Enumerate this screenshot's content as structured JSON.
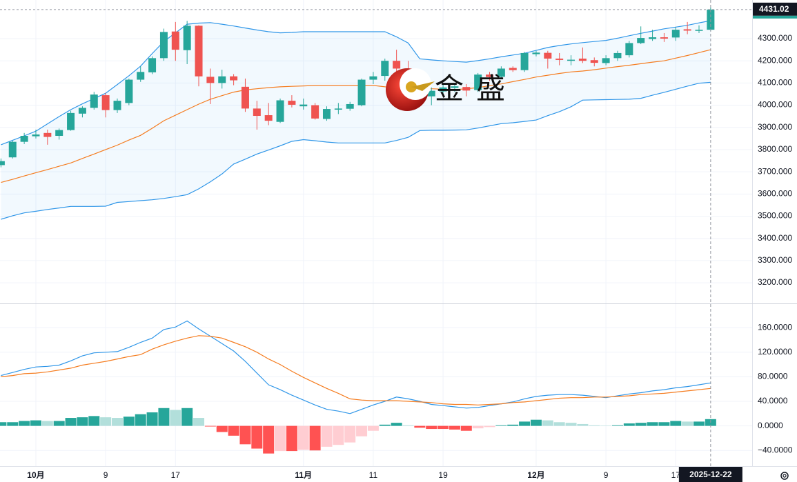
{
  "chart_data": [
    {
      "type": "candlestick",
      "watermark": "金盛",
      "categories": [
        null,
        null,
        null,
        "10月",
        null,
        null,
        null,
        null,
        null,
        "9",
        null,
        null,
        null,
        null,
        null,
        "17",
        null,
        null,
        null,
        null,
        null,
        null,
        null,
        null,
        null,
        null,
        "11月",
        null,
        null,
        null,
        null,
        null,
        "11",
        null,
        null,
        null,
        null,
        null,
        "19",
        null,
        null,
        null,
        null,
        null,
        null,
        null,
        "12月",
        null,
        null,
        null,
        null,
        null,
        "9",
        null,
        null,
        null,
        null,
        null,
        "17",
        null,
        null,
        "2025-12-22"
      ],
      "open": [
        3730,
        3765,
        3835,
        3860,
        3875,
        3862,
        3888,
        3962,
        3988,
        4045,
        3978,
        4010,
        4115,
        4148,
        4212,
        4332,
        4248,
        4358,
        4128,
        4100,
        4130,
        4083,
        3985,
        3955,
        3925,
        4020,
        3995,
        4000,
        3938,
        3980,
        3984,
        4000,
        4115,
        4132,
        4200,
        4165,
        4085,
        4040,
        4062,
        4078,
        4082,
        4068,
        4138,
        4128,
        4168,
        4158,
        4230,
        4236,
        4210,
        4200,
        4210,
        4203,
        4190,
        4212,
        4225,
        4280,
        4298,
        4306,
        4305,
        4342,
        4335,
        4340
      ],
      "high": [
        3760,
        3840,
        3875,
        3890,
        3890,
        3895,
        3975,
        3995,
        4060,
        4055,
        4030,
        4120,
        4175,
        4220,
        4345,
        4375,
        4380,
        4360,
        4165,
        4160,
        4140,
        4120,
        4020,
        4010,
        4030,
        4045,
        4030,
        4010,
        3995,
        4010,
        4015,
        4120,
        4150,
        4210,
        4250,
        4200,
        4110,
        4080,
        4100,
        4100,
        4095,
        4145,
        4150,
        4175,
        4175,
        4240,
        4245,
        4245,
        4235,
        4225,
        4260,
        4215,
        4225,
        4245,
        4290,
        4355,
        4340,
        4325,
        4352,
        4375,
        4360,
        4440
      ],
      "low": [
        3720,
        3760,
        3825,
        3850,
        3822,
        3845,
        3885,
        3945,
        3980,
        3945,
        3965,
        4000,
        4105,
        4140,
        4200,
        4200,
        4185,
        4085,
        4005,
        4075,
        4090,
        3970,
        3890,
        3910,
        3920,
        3990,
        3980,
        3935,
        3930,
        3960,
        3975,
        3995,
        4095,
        4110,
        4150,
        4080,
        4020,
        4000,
        4050,
        4060,
        4040,
        4060,
        4110,
        4120,
        4150,
        4150,
        4220,
        4165,
        4180,
        4180,
        4190,
        4175,
        4180,
        4200,
        4215,
        4275,
        4290,
        4285,
        4290,
        4320,
        4325,
        4335
      ],
      "close": [
        3748,
        3835,
        3862,
        3868,
        3857,
        3888,
        3965,
        3988,
        4048,
        3978,
        4020,
        4115,
        4150,
        4212,
        4330,
        4250,
        4358,
        4130,
        4100,
        4130,
        4112,
        3985,
        3952,
        3930,
        4022,
        4002,
        4003,
        3940,
        3983,
        3985,
        4005,
        4115,
        4130,
        4200,
        4165,
        4100,
        4040,
        4065,
        4080,
        4085,
        4066,
        4138,
        4127,
        4165,
        4158,
        4235,
        4237,
        4210,
        4204,
        4205,
        4200,
        4191,
        4212,
        4235,
        4280,
        4303,
        4306,
        4300,
        4340,
        4336,
        4340,
        4431.02
      ],
      "up_color": "#26a69a",
      "down_color": "#ef5350",
      "series": [
        {
          "color": "#2f96e8",
          "values": [
            3822,
            3842,
            3862,
            3883,
            3916,
            3949,
            3980,
            4006,
            4030,
            4054,
            4093,
            4133,
            4176,
            4233,
            4287,
            4326,
            4365,
            4370,
            4372,
            4365,
            4357,
            4348,
            4339,
            4331,
            4326,
            4328,
            4331,
            4331,
            4331,
            4331,
            4331,
            4331,
            4331,
            4331,
            4308,
            4280,
            4209,
            4204,
            4200,
            4197,
            4194,
            4201,
            4209,
            4218,
            4226,
            4234,
            4247,
            4260,
            4269,
            4276,
            4282,
            4287,
            4292,
            4302,
            4313,
            4324,
            4334,
            4344,
            4352,
            4360,
            4371,
            4381
          ]
        },
        {
          "color": "#f57c1f",
          "values": [
            3652,
            3666,
            3681,
            3696,
            3710,
            3725,
            3740,
            3760,
            3780,
            3800,
            3820,
            3843,
            3864,
            3896,
            3930,
            3955,
            3980,
            4005,
            4027,
            4043,
            4059,
            4069,
            4074,
            4079,
            4083,
            4085,
            4087,
            4089,
            4089,
            4089,
            4089,
            4089,
            4089,
            4083,
            4081,
            4078,
            4076,
            4074,
            4072,
            4070,
            4074,
            4079,
            4088,
            4096,
            4106,
            4116,
            4127,
            4135,
            4143,
            4150,
            4154,
            4160,
            4167,
            4174,
            4180,
            4187,
            4194,
            4200,
            4212,
            4224,
            4237,
            4250
          ]
        },
        {
          "color": "#2f96e8",
          "values": [
            3486,
            3502,
            3515,
            3522,
            3530,
            3537,
            3544,
            3544,
            3544,
            3545,
            3562,
            3566,
            3570,
            3574,
            3580,
            3588,
            3597,
            3623,
            3655,
            3690,
            3735,
            3757,
            3780,
            3798,
            3817,
            3837,
            3845,
            3840,
            3834,
            3830,
            3830,
            3830,
            3830,
            3830,
            3841,
            3855,
            3886,
            3887,
            3887,
            3888,
            3889,
            3897,
            3907,
            3917,
            3921,
            3927,
            3933,
            3953,
            3971,
            3993,
            4023,
            4024,
            4025,
            4026,
            4027,
            4031,
            4045,
            4058,
            4072,
            4086,
            4099,
            4103
          ]
        }
      ],
      "band_fill": "rgba(33,150,243,0.06)",
      "last_price_box_color": "#131722",
      "ylim": [
        3107,
        4474
      ],
      "yticks": [
        {
          "value": 3200,
          "label": "3200.000"
        },
        {
          "value": 3300,
          "label": "3300.000"
        },
        {
          "value": 3400,
          "label": "3400.000"
        },
        {
          "value": 3500,
          "label": "3500.000"
        },
        {
          "value": 3600,
          "label": "3600.000"
        },
        {
          "value": 3700,
          "label": "3700.000"
        },
        {
          "value": 3800,
          "label": "3800.000"
        },
        {
          "value": 3900,
          "label": "3900.000"
        },
        {
          "value": 4000,
          "label": "4000.000"
        },
        {
          "value": 4100,
          "label": "4100.000"
        },
        {
          "value": 4200,
          "label": "4200.000"
        },
        {
          "value": 4300,
          "label": "4300.000"
        }
      ],
      "grid": true
    },
    {
      "type": "macd",
      "series": [
        {
          "color": "#2f96e8",
          "values": [
            82,
            87,
            92,
            96,
            97,
            99,
            106,
            114,
            119,
            120,
            121,
            128,
            136,
            143,
            157,
            161,
            171,
            158,
            146,
            134,
            122,
            105,
            86,
            67,
            59,
            50,
            42,
            34,
            27,
            24,
            20,
            27,
            34,
            40,
            47,
            44,
            40,
            35,
            33,
            31,
            29,
            30,
            33,
            36,
            39,
            44,
            48,
            50,
            51,
            51,
            50,
            48,
            46,
            49,
            52,
            54,
            57,
            59,
            62,
            64,
            67,
            70
          ]
        },
        {
          "color": "#f57c1f",
          "values": [
            80,
            82,
            85,
            86,
            88,
            91,
            94,
            99,
            102,
            105,
            109,
            113,
            116,
            125,
            132,
            138,
            143,
            147,
            146,
            143,
            136,
            129,
            120,
            109,
            100,
            89,
            79,
            70,
            61,
            53,
            44,
            42,
            41,
            41,
            41,
            40,
            39,
            38,
            36,
            35,
            35,
            34,
            35,
            36,
            38,
            39,
            41,
            43,
            45,
            46,
            46,
            47,
            47,
            48,
            49,
            51,
            52,
            53,
            55,
            57,
            59,
            61
          ]
        }
      ],
      "histogram": {
        "values": [
          6,
          6,
          8,
          9,
          8,
          8,
          13,
          14,
          16,
          14,
          13,
          15,
          19,
          22,
          29,
          26,
          29,
          13,
          -1,
          -10,
          -16,
          -30,
          -37,
          -45,
          -41,
          -41,
          -39,
          -40,
          -34,
          -31,
          -27,
          -17,
          -8,
          2,
          5,
          1,
          -3,
          -5,
          -5,
          -6,
          -8,
          -4,
          -2,
          1,
          2,
          7,
          10,
          9,
          6,
          5,
          3,
          1,
          0.5,
          1,
          4,
          5,
          6,
          6,
          8,
          7,
          7,
          11
        ],
        "rising_positive_color": "#26a69a",
        "falling_positive_color": "#b2dfdb",
        "falling_negative_color": "#ff5252",
        "rising_negative_color": "#ffcdd2"
      },
      "ylim": [
        -65.6,
        198.4
      ],
      "yticks": [
        {
          "value": -40,
          "label": "−40.0000"
        },
        {
          "value": 0,
          "label": "0.0000"
        },
        {
          "value": 40,
          "label": "40.0000"
        },
        {
          "value": 80,
          "label": "80.0000"
        },
        {
          "value": 120,
          "label": "120.0000"
        },
        {
          "value": 160,
          "label": "160.0000"
        }
      ],
      "grid": true
    }
  ]
}
